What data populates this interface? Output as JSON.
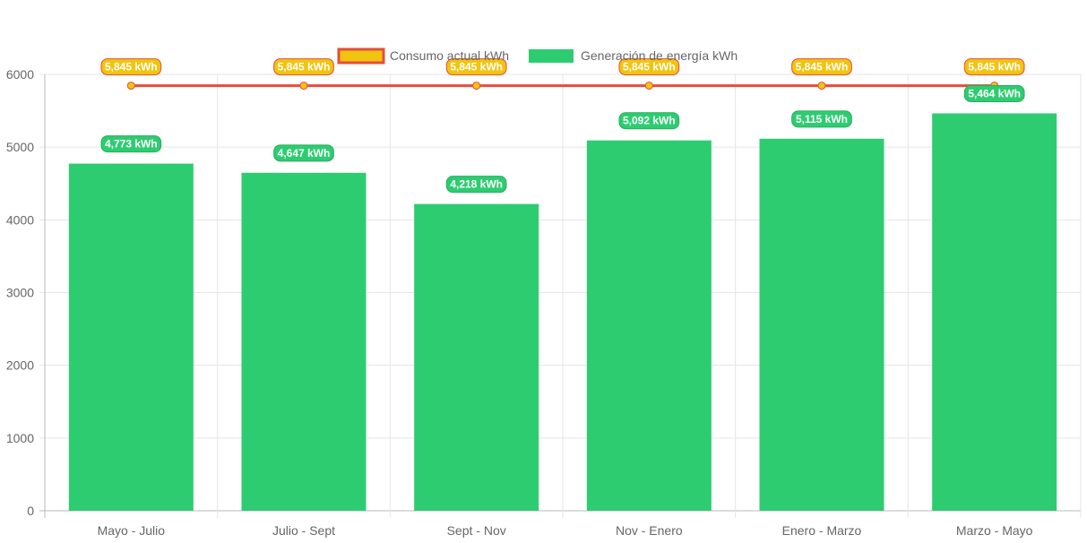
{
  "chart_data": {
    "type": "bar",
    "categories": [
      "Mayo - Julio",
      "Julio - Sept",
      "Sept - Nov",
      "Nov - Enero",
      "Enero - Marzo",
      "Marzo - Mayo"
    ],
    "series": [
      {
        "name": "Consumo actual kWh",
        "type": "line",
        "values": [
          5845,
          5845,
          5845,
          5845,
          5845,
          5845
        ],
        "labels": [
          "5,845 kWh",
          "5,845 kWh",
          "5,845 kWh",
          "5,845 kWh",
          "5,845 kWh",
          "5,845 kWh"
        ],
        "color": "#f1c40f",
        "border_color": "#e74c3c"
      },
      {
        "name": "Generación de energía kWh",
        "type": "bar",
        "values": [
          4773,
          4647,
          4218,
          5092,
          5115,
          5464
        ],
        "labels": [
          "4,773 kWh",
          "4,647 kWh",
          "4,218 kWh",
          "5,092 kWh",
          "5,115 kWh",
          "5,464 kWh"
        ],
        "color": "#2ecc71"
      }
    ],
    "ylim": [
      0,
      6000
    ],
    "yticks": [
      "0",
      "1000",
      "2000",
      "3000",
      "4000",
      "5000",
      "6000"
    ],
    "grid": true,
    "legend": "top-center"
  }
}
